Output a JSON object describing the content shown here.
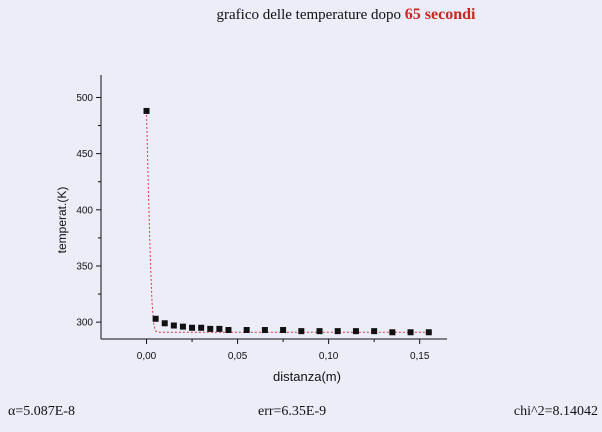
{
  "header": {
    "title_prefix": "grafico delle temperature dopo",
    "title_highlight": "65 secondi",
    "highlight_color": "#c8281e"
  },
  "footer": {
    "alpha": "α=5.087E-8",
    "err": "err=6.35E-9",
    "chi2": "chi^2=8.14042"
  },
  "chart_data": {
    "type": "scatter",
    "xlabel": "distanza(m)",
    "ylabel": "temperat.(K)",
    "xlim": [
      -0.025,
      0.165
    ],
    "ylim": [
      285,
      520
    ],
    "xticks": [
      0.0,
      0.05,
      0.1,
      0.15
    ],
    "xtick_labels": [
      "0,00",
      "0,05",
      "0,10",
      "0,15"
    ],
    "yticks": [
      300,
      350,
      400,
      450,
      500
    ],
    "ytick_labels": [
      "300",
      "350",
      "400",
      "450",
      "500"
    ],
    "marker_color": "#111111",
    "fit_color": "#d43c3c",
    "series": [
      {
        "x": [
          0.0,
          0.005,
          0.01,
          0.015,
          0.02,
          0.025,
          0.03,
          0.035,
          0.04,
          0.045,
          0.055,
          0.065,
          0.075,
          0.085,
          0.095,
          0.105,
          0.115,
          0.125,
          0.135,
          0.145,
          0.155
        ],
        "y": [
          488,
          303,
          299,
          297,
          296,
          295,
          295,
          294,
          294,
          293,
          293,
          293,
          293,
          292,
          292,
          292,
          292,
          292,
          291,
          291,
          291
        ]
      }
    ],
    "fit": {
      "x": [
        0.0,
        0.001,
        0.002,
        0.003,
        0.004,
        0.005,
        0.007,
        0.01,
        0.02,
        0.05,
        0.1,
        0.155
      ],
      "y": [
        488,
        420,
        360,
        318,
        298,
        292,
        291,
        291,
        291,
        291,
        291,
        291
      ]
    }
  }
}
